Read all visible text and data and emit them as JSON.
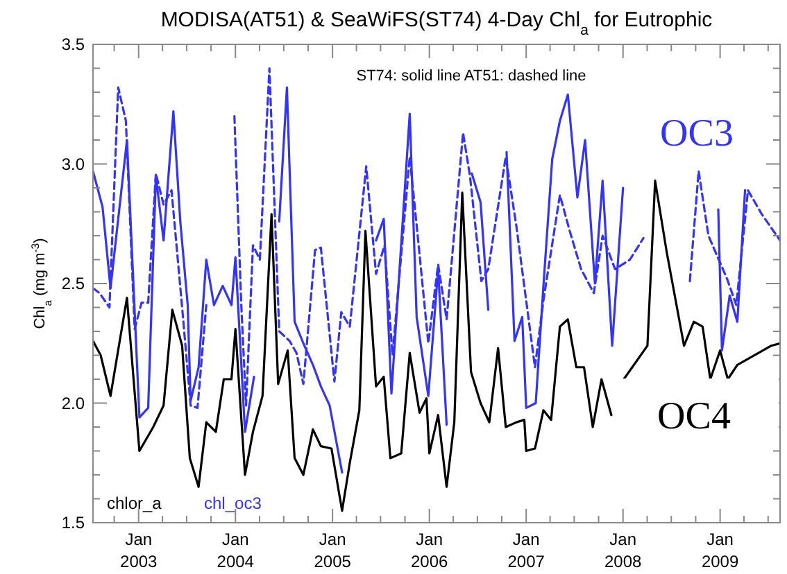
{
  "chart_data": {
    "type": "line",
    "title": "MODISA(AT51) & SeaWiFS(ST74) 4-Day Chl$_{a}$ for Eutrophic",
    "ylabel": "Chl$_{a}$ (mg m$^{-3}$)",
    "annotations": [
      "ST74: solid line   AT51: dashed line",
      "OC3",
      "OC4"
    ],
    "xlim": [
      "2002-07-13",
      "2009-08-15"
    ],
    "xticks": [
      {
        "value": "2002-10-01",
        "label": null
      },
      {
        "value": "2003-01-01",
        "label": "Jan 2003"
      },
      {
        "value": "2003-04-01",
        "label": null
      },
      {
        "value": "2003-07-01",
        "label": null
      },
      {
        "value": "2003-10-01",
        "label": null
      },
      {
        "value": "2004-01-01",
        "label": "Jan 2004"
      },
      {
        "value": "2004-04-01",
        "label": null
      },
      {
        "value": "2004-07-01",
        "label": null
      },
      {
        "value": "2004-10-01",
        "label": null
      },
      {
        "value": "2005-01-01",
        "label": "Jan 2005"
      },
      {
        "value": "2005-04-01",
        "label": null
      },
      {
        "value": "2005-07-01",
        "label": null
      },
      {
        "value": "2005-10-01",
        "label": null
      },
      {
        "value": "2006-01-01",
        "label": "Jan 2006"
      },
      {
        "value": "2006-04-01",
        "label": null
      },
      {
        "value": "2006-07-01",
        "label": null
      },
      {
        "value": "2006-10-01",
        "label": null
      },
      {
        "value": "2007-01-01",
        "label": "Jan 2007"
      },
      {
        "value": "2007-04-01",
        "label": null
      },
      {
        "value": "2007-07-01",
        "label": null
      },
      {
        "value": "2007-10-01",
        "label": null
      },
      {
        "value": "2008-01-01",
        "label": "Jan 2008"
      },
      {
        "value": "2008-04-01",
        "label": null
      },
      {
        "value": "2008-07-01",
        "label": null
      },
      {
        "value": "2008-10-01",
        "label": null
      },
      {
        "value": "2009-01-01",
        "label": "Jan 2009"
      },
      {
        "value": "2009-04-01",
        "label": null
      },
      {
        "value": "2009-07-01",
        "label": null
      }
    ],
    "ylim": [
      1.5,
      3.5
    ],
    "yticks": [
      {
        "value": 1.5,
        "label": "1.5"
      },
      {
        "value": 1.6,
        "label": null
      },
      {
        "value": 1.7,
        "label": null
      },
      {
        "value": 1.8,
        "label": null
      },
      {
        "value": 1.9,
        "label": null
      },
      {
        "value": 2.0,
        "label": "2.0"
      },
      {
        "value": 2.1,
        "label": null
      },
      {
        "value": 2.2,
        "label": null
      },
      {
        "value": 2.3,
        "label": null
      },
      {
        "value": 2.4,
        "label": null
      },
      {
        "value": 2.5,
        "label": "2.5"
      },
      {
        "value": 2.6,
        "label": null
      },
      {
        "value": 2.7,
        "label": null
      },
      {
        "value": 2.8,
        "label": null
      },
      {
        "value": 2.9,
        "label": null
      },
      {
        "value": 3.0,
        "label": "3.0"
      },
      {
        "value": 3.1,
        "label": null
      },
      {
        "value": 3.2,
        "label": null
      },
      {
        "value": 3.3,
        "label": null
      },
      {
        "value": 3.4,
        "label": null
      },
      {
        "value": 3.5,
        "label": "3.5"
      }
    ],
    "grid": false,
    "legend": "bottom left",
    "series": [
      {
        "name": "chlor_a",
        "color": "#000000",
        "line_style": "solid",
        "x": [
          "2002-07-13",
          "2002-08-11",
          "2002-09-17",
          "2002-11-18",
          "2003-01-04",
          "2003-02-25",
          "2003-04-05",
          "2003-05-08",
          "2003-06-14",
          "2003-07-13",
          "2003-08-15",
          "2003-09-13",
          "2003-10-19",
          "2003-11-18",
          "2003-12-17",
          "2004-01-01",
          "2004-02-06",
          "2004-03-07",
          "2004-04-12",
          "2004-05-16",
          "2004-06-10",
          "2004-07-16",
          "2004-08-11",
          "2004-09-13",
          "2004-10-19",
          "2004-11-18",
          "2004-12-28",
          "2005-02-06",
          "2005-03-07",
          "2005-04-12",
          "2005-05-05",
          "2005-06-14",
          "2005-07-13",
          "2005-08-07",
          "2005-09-17",
          "2005-10-19",
          "2005-11-25",
          "2005-12-21",
          "2006-01-01",
          "2006-02-03",
          "2006-03-07",
          "2006-04-05",
          "2006-05-05",
          "2006-06-07",
          "2006-07-13",
          "2006-08-15",
          "2006-09-17",
          "2006-10-16",
          "2006-11-25",
          "2006-12-25",
          "2007-01-01",
          "2007-02-03",
          "2007-03-07",
          "2007-04-05",
          "2007-05-08",
          "2007-06-07",
          "2007-07-09",
          "2007-08-07",
          "2007-09-09",
          "2007-10-12",
          "2007-11-18",
          "2007-12-13",
          "2008-01-04",
          "2008-04-02",
          "2008-05-01",
          "2008-06-14",
          "2008-08-18",
          "2008-09-24",
          "2008-10-27",
          "2008-11-25",
          "2009-01-01",
          "2009-01-30",
          "2009-03-07",
          "2009-07-13",
          "2009-08-15"
        ],
        "values": [
          2.26,
          2.2,
          2.03,
          2.44,
          1.8,
          1.9,
          1.99,
          2.39,
          2.24,
          1.77,
          1.65,
          1.92,
          1.88,
          2.1,
          2.1,
          2.31,
          1.7,
          1.88,
          2.03,
          2.79,
          2.08,
          2.22,
          1.77,
          1.7,
          1.89,
          1.82,
          1.81,
          1.55,
          1.75,
          1.97,
          2.72,
          2.07,
          2.11,
          1.77,
          1.79,
          2.21,
          1.96,
          2.02,
          1.79,
          1.95,
          1.65,
          1.92,
          2.88,
          2.13,
          2.0,
          1.92,
          2.23,
          1.9,
          1.92,
          1.93,
          1.8,
          1.81,
          1.97,
          1.93,
          2.32,
          2.35,
          2.15,
          2.15,
          1.9,
          2.1,
          1.95,
          null,
          2.1,
          2.24,
          2.93,
          2.63,
          2.24,
          2.34,
          2.32,
          2.1,
          2.22,
          2.1,
          2.16,
          2.24,
          2.25
        ]
      },
      {
        "name": "chl_oc3",
        "color": "#3333ff",
        "line_style": "solid",
        "x": [
          "2002-07-13",
          "2002-08-18",
          "2002-09-17",
          "2002-11-18",
          "2003-01-04",
          "2003-02-06",
          "2003-03-07",
          "2003-04-05",
          "2003-05-12",
          "2003-06-07",
          "2003-07-05",
          "2003-07-16",
          "2003-08-15",
          "2003-09-13",
          "2003-10-12",
          "2003-11-14",
          "2003-12-17",
          "2004-01-01",
          "2004-02-06",
          "2004-03-11",
          "2004-04-27",
          "2004-06-14",
          "2004-07-13",
          "2004-08-11",
          "2004-09-13",
          "2004-10-19",
          "2004-11-18",
          "2004-12-21",
          "2005-02-06",
          "2005-04-20",
          "2005-06-14",
          "2005-07-13",
          "2005-08-11",
          "2005-10-19",
          "2005-11-14",
          "2005-12-28",
          "2006-02-03",
          "2006-03-07",
          "2006-04-27",
          "2006-06-10",
          "2006-07-13",
          "2006-08-11",
          "2006-09-06",
          "2006-10-19",
          "2006-11-18",
          "2006-12-17",
          "2007-01-01",
          "2007-02-06",
          "2007-03-07",
          "2007-04-09",
          "2007-05-08",
          "2007-06-07",
          "2007-07-13",
          "2007-08-11",
          "2007-09-17",
          "2007-10-16",
          "2007-11-21",
          "2008-01-01",
          "2008-04-02",
          "2008-07-02",
          "2008-12-25",
          "2009-01-08",
          "2009-02-06",
          "2009-03-07",
          "2009-04-05"
        ],
        "values": [
          2.97,
          2.82,
          2.48,
          3.1,
          1.94,
          1.98,
          2.95,
          2.68,
          3.22,
          2.76,
          2.41,
          2.01,
          2.15,
          2.6,
          2.41,
          2.49,
          2.41,
          2.61,
          1.88,
          2.11,
          null,
          2.76,
          3.32,
          2.34,
          2.25,
          2.16,
          2.07,
          1.99,
          1.71,
          null,
          2.68,
          2.77,
          2.04,
          3.21,
          2.36,
          2.03,
          2.56,
          1.91,
          null,
          2.96,
          2.84,
          2.39,
          null,
          3.05,
          2.26,
          2.36,
          1.98,
          2.0,
          2.49,
          3.02,
          3.18,
          3.29,
          2.86,
          3.1,
          2.5,
          2.93,
          2.24,
          2.9,
          null,
          null,
          2.81,
          2.22,
          2.45,
          2.34,
          2.89
        ]
      },
      {
        "color": "#3333ff",
        "line_style": "dashed",
        "x": [
          "2002-07-13",
          "2002-08-07",
          "2002-09-13",
          "2002-10-16",
          "2002-11-14",
          "2002-12-17",
          "2003-01-12",
          "2003-02-06",
          "2003-03-07",
          "2003-04-05",
          "2003-05-05",
          "2003-06-14",
          "2003-07-16",
          "2003-08-11",
          "2003-09-13",
          "2003-11-14",
          "2003-12-28",
          "2004-01-23",
          "2004-02-10",
          "2004-03-07",
          "2004-04-02",
          "2004-05-08",
          "2004-06-14",
          "2004-07-23",
          "2004-08-18",
          "2004-09-13",
          "2004-10-27",
          "2004-11-18",
          "2005-01-08",
          "2005-02-03",
          "2005-03-07",
          "2005-05-08",
          "2005-06-14",
          "2005-07-16",
          "2005-08-15",
          "2005-10-19",
          "2005-11-18",
          "2005-12-28",
          "2006-02-03",
          "2006-03-07",
          "2006-05-08",
          "2006-06-03",
          "2006-07-16",
          "2006-08-11",
          "2006-10-16",
          "2006-11-25",
          "2007-02-03",
          "2007-03-07",
          "2007-05-08",
          "2007-06-14",
          "2007-07-27",
          "2007-09-13",
          "2007-10-16",
          "2007-12-02",
          "2008-01-27",
          "2008-03-18",
          "2008-04-20",
          "2008-07-02",
          "2008-09-09",
          "2008-10-12",
          "2008-11-18",
          "2009-01-27",
          "2009-03-03",
          "2009-04-16",
          "2009-06-07",
          "2009-08-15"
        ],
        "values": [
          2.48,
          2.46,
          2.4,
          3.32,
          3.18,
          2.31,
          2.42,
          2.42,
          2.96,
          2.83,
          2.89,
          2.4,
          1.99,
          1.98,
          2.41,
          null,
          3.2,
          2.41,
          1.99,
          2.66,
          2.6,
          3.4,
          2.3,
          2.26,
          2.21,
          2.08,
          2.64,
          2.65,
          2.09,
          2.38,
          2.32,
          2.99,
          2.54,
          2.66,
          2.2,
          3.03,
          2.7,
          2.25,
          2.58,
          2.35,
          3.13,
          2.95,
          2.51,
          2.56,
          3.03,
          2.74,
          2.15,
          2.43,
          2.87,
          2.72,
          2.56,
          2.46,
          2.7,
          2.56,
          2.6,
          2.69,
          null,
          null,
          2.51,
          2.97,
          2.7,
          2.52,
          2.41,
          2.89,
          2.79,
          2.68
        ]
      }
    ]
  }
}
